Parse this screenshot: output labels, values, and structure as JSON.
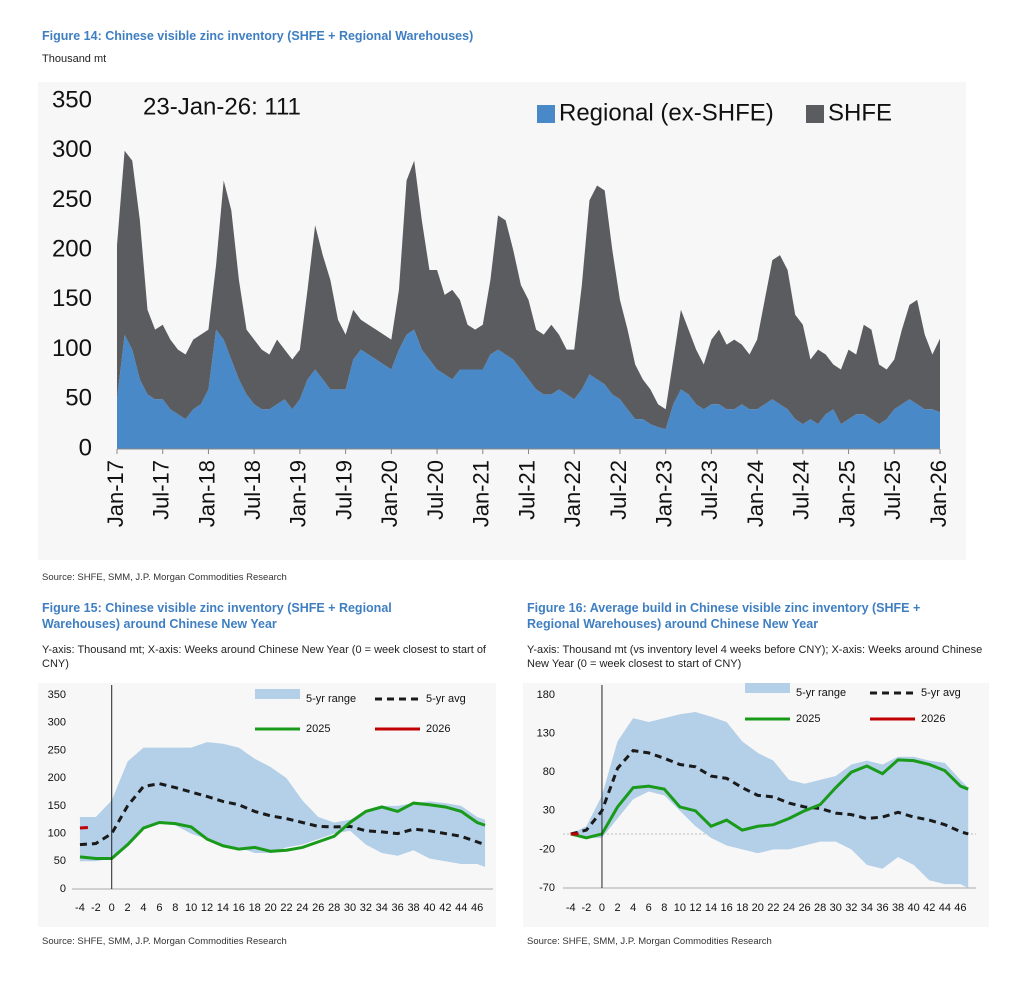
{
  "chart_data": [
    {
      "type": "area",
      "stacked": true,
      "title": "Figure 14: Chinese visible zinc inventory (SHFE + Regional Warehouses)",
      "subtitle": "Thousand mt",
      "annotation": "23-Jan-26: 111",
      "source": "Source: SHFE, SMM, J.P. Morgan Commodities Research",
      "legend": "upper right",
      "categories": [
        "Jan-17",
        null,
        null,
        null,
        null,
        null,
        "Jul-17",
        null,
        null,
        null,
        null,
        null,
        "Jan-18",
        null,
        null,
        null,
        null,
        null,
        "Jul-18",
        null,
        null,
        null,
        null,
        null,
        "Jan-19",
        null,
        null,
        null,
        null,
        null,
        "Jul-19",
        null,
        null,
        null,
        null,
        null,
        "Jan-20",
        null,
        null,
        null,
        null,
        null,
        "Jul-20",
        null,
        null,
        null,
        null,
        null,
        "Jan-21",
        null,
        null,
        null,
        null,
        null,
        "Jul-21",
        null,
        null,
        null,
        null,
        null,
        "Jan-22",
        null,
        null,
        null,
        null,
        null,
        "Jul-22",
        null,
        null,
        null,
        null,
        null,
        "Jan-23",
        null,
        null,
        null,
        null,
        null,
        "Jul-23",
        null,
        null,
        null,
        null,
        null,
        "Jan-24",
        null,
        null,
        null,
        null,
        null,
        "Jul-24",
        null,
        null,
        null,
        null,
        null,
        "Jan-25",
        null,
        null,
        null,
        null,
        null,
        "Jul-25",
        null,
        null,
        null,
        null,
        null,
        "Jan-26"
      ],
      "series": [
        {
          "name": "Regional (ex-SHFE)",
          "color": "#4a89c8",
          "values": [
            50,
            115,
            100,
            70,
            55,
            50,
            50,
            40,
            35,
            30,
            40,
            45,
            60,
            120,
            110,
            90,
            70,
            55,
            45,
            40,
            40,
            45,
            50,
            40,
            50,
            70,
            80,
            70,
            60,
            60,
            60,
            90,
            100,
            95,
            90,
            85,
            80,
            100,
            115,
            120,
            100,
            90,
            80,
            75,
            70,
            80,
            80,
            80,
            80,
            95,
            100,
            95,
            90,
            80,
            70,
            60,
            55,
            55,
            60,
            55,
            50,
            60,
            75,
            70,
            65,
            55,
            50,
            40,
            30,
            30,
            25,
            22,
            20,
            45,
            60,
            55,
            45,
            40,
            45,
            45,
            40,
            40,
            45,
            40,
            40,
            45,
            50,
            45,
            40,
            30,
            25,
            30,
            25,
            35,
            40,
            25,
            30,
            35,
            35,
            30,
            25,
            30,
            40,
            45,
            50,
            45,
            40,
            40,
            37
          ]
        },
        {
          "name": "SHFE",
          "color": "#5a5c60",
          "values": [
            155,
            185,
            190,
            160,
            85,
            70,
            75,
            70,
            65,
            65,
            70,
            70,
            60,
            65,
            160,
            150,
            100,
            65,
            65,
            60,
            55,
            65,
            50,
            50,
            50,
            90,
            145,
            125,
            110,
            70,
            55,
            50,
            30,
            30,
            30,
            30,
            30,
            60,
            155,
            170,
            130,
            90,
            100,
            80,
            90,
            70,
            45,
            40,
            45,
            75,
            135,
            135,
            110,
            85,
            80,
            60,
            60,
            70,
            55,
            45,
            50,
            105,
            175,
            195,
            195,
            145,
            100,
            80,
            55,
            40,
            35,
            23,
            20,
            45,
            80,
            65,
            55,
            45,
            65,
            75,
            65,
            70,
            60,
            55,
            70,
            105,
            140,
            150,
            140,
            105,
            100,
            60,
            75,
            60,
            45,
            55,
            70,
            60,
            90,
            90,
            60,
            50,
            50,
            75,
            95,
            105,
            75,
            55,
            74
          ]
        }
      ],
      "ylim": [
        0,
        350
      ],
      "yticks": [
        0,
        50,
        100,
        150,
        200,
        250,
        300,
        350
      ]
    },
    {
      "type": "line",
      "title": "Figure 15: Chinese visible zinc inventory (SHFE + Regional Warehouses) around Chinese New Year",
      "subtitle": "Y-axis: Thousand mt; X-axis: Weeks around Chinese New Year (0 = week closest to start of CNY)",
      "source": "Source: SHFE, SMM, J.P. Morgan Commodities Research",
      "legend": "upper right",
      "x": [
        -4,
        -2,
        0,
        2,
        4,
        6,
        8,
        10,
        12,
        14,
        16,
        18,
        20,
        22,
        24,
        26,
        28,
        30,
        32,
        34,
        36,
        38,
        40,
        42,
        44,
        46,
        47
      ],
      "series": [
        {
          "name": "5-yr range",
          "color": "#b4cfe8",
          "low": [
            50,
            50,
            55,
            80,
            110,
            120,
            115,
            100,
            90,
            75,
            75,
            65,
            65,
            75,
            80,
            90,
            100,
            105,
            80,
            65,
            60,
            70,
            55,
            50,
            45,
            45,
            40
          ],
          "high": [
            130,
            130,
            160,
            230,
            255,
            255,
            255,
            255,
            265,
            262,
            255,
            235,
            220,
            200,
            160,
            130,
            120,
            125,
            140,
            150,
            150,
            155,
            158,
            155,
            150,
            130,
            125
          ]
        },
        {
          "name": "5-yr avg",
          "color": "#1a1a1a",
          "dashed": true,
          "values": [
            80,
            82,
            100,
            150,
            185,
            190,
            183,
            175,
            167,
            158,
            152,
            140,
            132,
            127,
            120,
            113,
            112,
            113,
            105,
            103,
            100,
            108,
            105,
            100,
            95,
            85,
            80
          ]
        },
        {
          "name": "2025",
          "color": "#1a9a1a",
          "values": [
            58,
            55,
            55,
            80,
            110,
            120,
            118,
            112,
            90,
            78,
            72,
            75,
            68,
            70,
            75,
            85,
            95,
            120,
            140,
            148,
            140,
            155,
            152,
            148,
            140,
            120,
            115
          ]
        },
        {
          "name": "2026",
          "color": "#c00000",
          "x": [
            -4,
            -3
          ],
          "values": [
            110,
            111
          ]
        }
      ],
      "xlim": [
        -5,
        48
      ],
      "xticks": [
        -4,
        -2,
        0,
        2,
        4,
        6,
        8,
        10,
        12,
        14,
        16,
        18,
        20,
        22,
        24,
        26,
        28,
        30,
        32,
        34,
        36,
        38,
        40,
        42,
        44,
        46
      ],
      "ylim": [
        0,
        350
      ],
      "yticks": [
        0,
        50,
        100,
        150,
        200,
        250,
        300,
        350
      ]
    },
    {
      "type": "line",
      "title": "Figure 16: Average build in Chinese visible zinc inventory (SHFE + Regional Warehouses) around Chinese New Year",
      "subtitle": "Y-axis: Thousand mt (vs inventory level 4 weeks before CNY); X-axis: Weeks around Chinese New Year (0 = week closest to start of CNY)",
      "source": "Source: SHFE, SMM, J.P. Morgan Commodities Research",
      "legend": "upper right",
      "x": [
        -4,
        -2,
        0,
        2,
        4,
        6,
        8,
        10,
        12,
        14,
        16,
        18,
        20,
        22,
        24,
        26,
        28,
        30,
        32,
        34,
        36,
        38,
        40,
        42,
        44,
        46,
        47
      ],
      "series": [
        {
          "name": "5-yr range",
          "color": "#b4cfe8",
          "low": [
            0,
            -5,
            -5,
            20,
            45,
            55,
            50,
            30,
            10,
            -5,
            -15,
            -20,
            -25,
            -20,
            -20,
            -15,
            -10,
            -10,
            -20,
            -40,
            -45,
            -30,
            -40,
            -60,
            -65,
            -65,
            -70
          ],
          "high": [
            0,
            10,
            50,
            120,
            150,
            145,
            150,
            155,
            158,
            152,
            145,
            120,
            105,
            95,
            70,
            65,
            70,
            75,
            90,
            95,
            90,
            100,
            100,
            95,
            92,
            70,
            60
          ]
        },
        {
          "name": "5-yr avg",
          "color": "#1a1a1a",
          "dashed": true,
          "values": [
            0,
            5,
            30,
            85,
            108,
            105,
            98,
            90,
            87,
            75,
            72,
            60,
            50,
            48,
            40,
            35,
            33,
            27,
            25,
            20,
            22,
            28,
            22,
            18,
            12,
            3,
            0
          ]
        },
        {
          "name": "2025",
          "color": "#1a9a1a",
          "values": [
            0,
            -5,
            0,
            35,
            60,
            62,
            58,
            35,
            30,
            10,
            18,
            5,
            10,
            12,
            20,
            30,
            38,
            60,
            80,
            88,
            78,
            96,
            95,
            90,
            82,
            62,
            58
          ]
        },
        {
          "name": "2026",
          "color": "#c00000",
          "x": [
            -4,
            -3
          ],
          "values": [
            0,
            0
          ]
        }
      ],
      "xlim": [
        -5,
        48
      ],
      "xticks": [
        -4,
        -2,
        0,
        2,
        4,
        6,
        8,
        10,
        12,
        14,
        16,
        18,
        20,
        22,
        24,
        26,
        28,
        30,
        32,
        34,
        36,
        38,
        40,
        42,
        44,
        46
      ],
      "ylim": [
        -70,
        180
      ],
      "yticks": [
        -70,
        -20,
        30,
        80,
        130,
        180
      ]
    }
  ]
}
